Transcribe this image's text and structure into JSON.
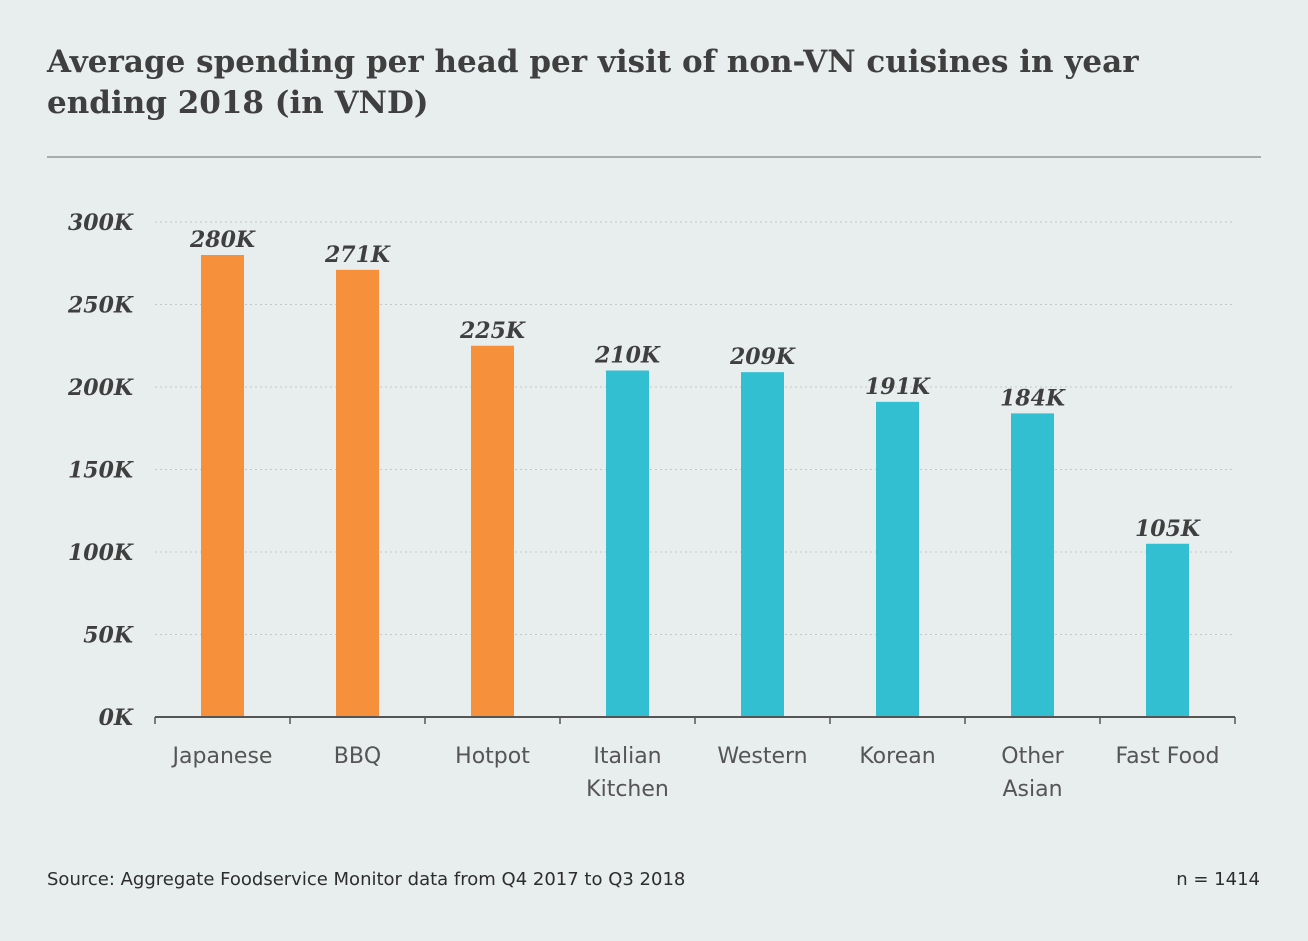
{
  "title": "Average spending per head per visit of non-VN cuisines in year ending 2018 (in VND)",
  "source": "Source: Aggregate Foodservice Monitor data from Q4 2017 to Q3 2018",
  "sample_size": "n = 1414",
  "colors": {
    "highlight": "#f7903b",
    "default": "#32bfd1",
    "grid": "#c3c7c8",
    "axis": "#555555",
    "text": "#3f3f3f"
  },
  "chart_data": {
    "type": "bar",
    "title": "Average spending per head per visit of non-VN cuisines in year ending 2018 (in VND)",
    "xlabel": "",
    "ylabel": "",
    "categories": [
      "Japanese",
      "BBQ",
      "Hotpot",
      "Italian Kitchen",
      "Western",
      "Korean",
      "Other Asian",
      "Fast Food"
    ],
    "category_lines": [
      [
        "Japanese"
      ],
      [
        "BBQ"
      ],
      [
        "Hotpot"
      ],
      [
        "Italian",
        "Kitchen"
      ],
      [
        "Western"
      ],
      [
        "Korean"
      ],
      [
        "Other",
        "Asian"
      ],
      [
        "Fast Food"
      ]
    ],
    "values": [
      280,
      271,
      225,
      210,
      209,
      191,
      184,
      105
    ],
    "value_labels": [
      "280K",
      "271K",
      "225K",
      "210K",
      "209K",
      "191K",
      "184K",
      "105K"
    ],
    "highlighted": [
      true,
      true,
      true,
      false,
      false,
      false,
      false,
      false
    ],
    "ylim": [
      0,
      300
    ],
    "yticks": [
      0,
      50,
      100,
      150,
      200,
      250,
      300
    ],
    "ytick_labels": [
      "0K",
      "50K",
      "100K",
      "150K",
      "200K",
      "250K",
      "300K"
    ],
    "grid": true,
    "legend": "none"
  }
}
